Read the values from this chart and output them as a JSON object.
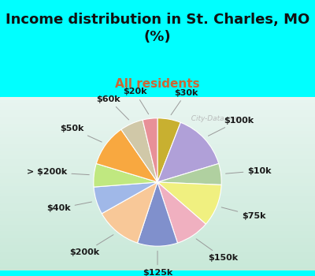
{
  "title": "Income distribution in St. Charles, MO\n(%)",
  "subtitle": "All residents",
  "title_fontsize": 13,
  "subtitle_fontsize": 11,
  "background_color": "#00FFFF",
  "chart_bg_gradient_top": "#e8f5f0",
  "chart_bg_gradient_bottom": "#d0eee0",
  "watermark": "  City-Data.com",
  "slices": [
    {
      "label": "$30k",
      "value": 5.5,
      "color": "#c8b030"
    },
    {
      "label": "$100k",
      "value": 13.5,
      "color": "#b0a0d8"
    },
    {
      "label": "$10k",
      "value": 5.0,
      "color": "#b0d0a0"
    },
    {
      "label": "$75k",
      "value": 10.0,
      "color": "#f0f080"
    },
    {
      "label": "$150k",
      "value": 8.0,
      "color": "#f0b0c0"
    },
    {
      "label": "$125k",
      "value": 9.5,
      "color": "#8090cc"
    },
    {
      "label": "$200k",
      "value": 11.0,
      "color": "#f8c898"
    },
    {
      "label": "$40k",
      "value": 6.5,
      "color": "#a0b8e8"
    },
    {
      "label": "> $200k",
      "value": 5.5,
      "color": "#c0e880"
    },
    {
      "label": "$50k",
      "value": 10.0,
      "color": "#f8a840"
    },
    {
      "label": "$60k",
      "value": 5.5,
      "color": "#d0c8a8"
    },
    {
      "label": "$20k",
      "value": 3.5,
      "color": "#e89098"
    }
  ],
  "label_fontsize": 8,
  "label_color": "#1a1a1a",
  "line_color": "#999999"
}
